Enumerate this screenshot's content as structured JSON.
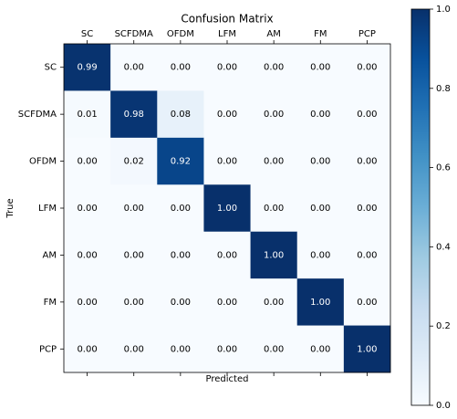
{
  "chart_data": {
    "type": "heatmap",
    "title": "Confusion Matrix",
    "x_label": "Predicted",
    "y_label": "True",
    "categories": [
      "SC",
      "SCFDMA",
      "OFDM",
      "LFM",
      "AM",
      "FM",
      "PCP"
    ],
    "values": [
      [
        0.99,
        0,
        0,
        0,
        0,
        0,
        0
      ],
      [
        0.01,
        0.98,
        0.08,
        0,
        0,
        0,
        0
      ],
      [
        0,
        0.02,
        0.92,
        0,
        0,
        0,
        0
      ],
      [
        0,
        0,
        0,
        1,
        0,
        0,
        0
      ],
      [
        0,
        0,
        0,
        0,
        1,
        0,
        0
      ],
      [
        0,
        0,
        0,
        0,
        0,
        1,
        0
      ],
      [
        0,
        0,
        0,
        0,
        0,
        0,
        1
      ]
    ],
    "value_labels": [
      [
        "0.99",
        "0.00",
        "0.00",
        "0.00",
        "0.00",
        "0.00",
        "0.00"
      ],
      [
        "0.01",
        "0.98",
        "0.08",
        "0.00",
        "0.00",
        "0.00",
        "0.00"
      ],
      [
        "0.00",
        "0.02",
        "0.92",
        "0.00",
        "0.00",
        "0.00",
        "0.00"
      ],
      [
        "0.00",
        "0.00",
        "0.00",
        "1.00",
        "0.00",
        "0.00",
        "0.00"
      ],
      [
        "0.00",
        "0.00",
        "0.00",
        "0.00",
        "1.00",
        "0.00",
        "0.00"
      ],
      [
        "0.00",
        "0.00",
        "0.00",
        "0.00",
        "0.00",
        "1.00",
        "0.00"
      ],
      [
        "0.00",
        "0.00",
        "0.00",
        "0.00",
        "0.00",
        "0.00",
        "1.00"
      ]
    ],
    "colormap": "Blues",
    "clim": [
      0,
      1
    ],
    "colorbar_ticks": [
      {
        "value": 0,
        "label": "0.0"
      },
      0.2,
      0.4,
      0.6,
      0.8,
      {
        "value": 1,
        "label": "1.0"
      }
    ]
  }
}
